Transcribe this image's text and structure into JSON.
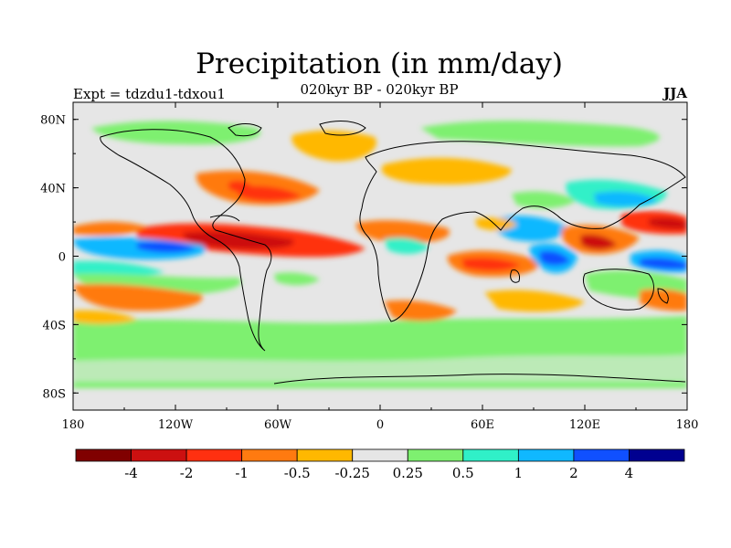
{
  "title": "Precipitation (in mm/day)",
  "subtitle": "020kyr BP - 020kyr BP",
  "experiment": "Expt = tdzdu1-tdxou1",
  "season": "JJA",
  "map": {
    "lon_labels": [
      "180",
      "120W",
      "60W",
      "0",
      "60E",
      "120E",
      "180"
    ],
    "lon_values": [
      -180,
      -120,
      -60,
      0,
      60,
      120,
      180
    ],
    "lat_labels": [
      "80N",
      "40N",
      "0",
      "40S",
      "80S"
    ],
    "lat_values": [
      80,
      40,
      0,
      -40,
      -80
    ],
    "lon_range": [
      -180,
      180
    ],
    "lat_range": [
      -90,
      90
    ],
    "background_color": "#e6e6e6"
  },
  "colorbar": {
    "colors": [
      "#800000",
      "#cc1010",
      "#ff3010",
      "#ff7a10",
      "#ffb800",
      "#e6e6e6",
      "#7ef070",
      "#30f0c8",
      "#10b8ff",
      "#1050ff",
      "#000090"
    ],
    "labels": [
      "-4",
      "-2",
      "-1",
      "-0.5",
      "-0.25",
      "0.25",
      "0.5",
      "1",
      "2",
      "4"
    ]
  }
}
